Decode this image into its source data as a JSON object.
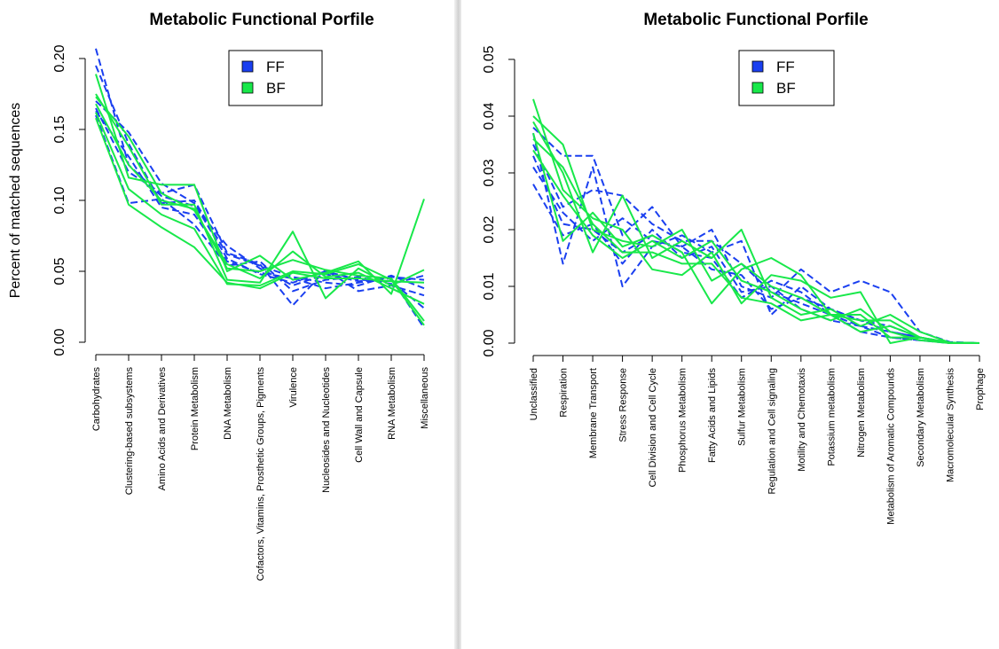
{
  "chart_data": [
    {
      "type": "line",
      "title": "Metabolic Functional Porfile",
      "ylabel": "Percent of matched sequences",
      "xlabel": "",
      "ylim": [
        0,
        0.2
      ],
      "yticks": [
        "0.00",
        "0.05",
        "0.10",
        "0.15",
        "0.20"
      ],
      "grid": false,
      "legend_position": "top-center",
      "legend": [
        {
          "label": "FF",
          "color": "#1a3ff0"
        },
        {
          "label": "BF",
          "color": "#18e84a"
        }
      ],
      "categories": [
        "Carbohydrates",
        "Clustering-based subsystems",
        "Amino Acids and Derivatives",
        "Protein Metabolism",
        "DNA Metabolism",
        "Cofactors, Vitamins, Prosthetic Groups, Pigments",
        "Virulence",
        "Nucleosides and Nucleotides",
        "Cell Wall and Capsule",
        "RNA Metabolism",
        "Miscellaneous"
      ],
      "series_groups": [
        {
          "group": "FF",
          "color": "#1a3ff0",
          "style": "dashed",
          "lines": [
            [
              0.207,
              0.125,
              0.103,
              0.096,
              0.068,
              0.052,
              0.04,
              0.048,
              0.043,
              0.045,
              0.01
            ],
            [
              0.195,
              0.14,
              0.098,
              0.1,
              0.062,
              0.054,
              0.046,
              0.042,
              0.04,
              0.047,
              0.038
            ],
            [
              0.17,
              0.148,
              0.112,
              0.098,
              0.059,
              0.048,
              0.042,
              0.05,
              0.044,
              0.043,
              0.024
            ],
            [
              0.165,
              0.12,
              0.105,
              0.111,
              0.063,
              0.055,
              0.026,
              0.051,
              0.036,
              0.04,
              0.033
            ],
            [
              0.16,
              0.098,
              0.101,
              0.083,
              0.054,
              0.057,
              0.036,
              0.044,
              0.046,
              0.041,
              0.047
            ],
            [
              0.163,
              0.131,
              0.095,
              0.09,
              0.057,
              0.049,
              0.045,
              0.038,
              0.042,
              0.046,
              0.044
            ]
          ]
        },
        {
          "group": "BF",
          "color": "#18e84a",
          "style": "solid",
          "lines": [
            [
              0.189,
              0.116,
              0.111,
              0.111,
              0.05,
              0.061,
              0.044,
              0.049,
              0.057,
              0.034,
              0.101
            ],
            [
              0.175,
              0.138,
              0.097,
              0.097,
              0.044,
              0.042,
              0.078,
              0.031,
              0.052,
              0.04,
              0.051
            ],
            [
              0.173,
              0.145,
              0.105,
              0.093,
              0.055,
              0.045,
              0.064,
              0.046,
              0.049,
              0.038,
              0.027
            ],
            [
              0.168,
              0.125,
              0.1,
              0.094,
              0.052,
              0.05,
              0.058,
              0.051,
              0.047,
              0.045,
              0.015
            ],
            [
              0.162,
              0.108,
              0.09,
              0.08,
              0.041,
              0.04,
              0.05,
              0.048,
              0.055,
              0.044,
              0.012
            ],
            [
              0.158,
              0.097,
              0.081,
              0.067,
              0.042,
              0.038,
              0.049,
              0.045,
              0.045,
              0.043,
              0.042
            ]
          ]
        }
      ]
    },
    {
      "type": "line",
      "title": "Metabolic Functional Porfile",
      "ylabel": "",
      "xlabel": "",
      "ylim": [
        0,
        0.05
      ],
      "yticks": [
        "0.00",
        "0.01",
        "0.02",
        "0.03",
        "0.04",
        "0.05"
      ],
      "grid": false,
      "legend_position": "top-center",
      "legend": [
        {
          "label": "FF",
          "color": "#1a3ff0"
        },
        {
          "label": "BF",
          "color": "#18e84a"
        }
      ],
      "categories": [
        "Unclassified",
        "Respiration",
        "Membrane Transport",
        "Stress Response",
        "Cell Division and Cell Cycle",
        "Phosphorus Metabolism",
        "Fatty Acids and Lipids",
        "Sulfur Metabolism",
        "Regulation and Cell signaling",
        "Motility and Chemotaxis",
        "Potassium metabolism",
        "Nitrogen Metabolism",
        "Metabolism of Aromatic Compounds",
        "Secondary Metabolism",
        "Macromolecular Synthesis",
        "Prophage"
      ],
      "series_groups": [
        {
          "group": "FF",
          "color": "#1a3ff0",
          "style": "dashed",
          "lines": [
            [
              0.038,
              0.033,
              0.033,
              0.019,
              0.024,
              0.017,
              0.02,
              0.01,
              0.008,
              0.013,
              0.009,
              0.011,
              0.009,
              0.002,
              0.0002,
              0.0
            ],
            [
              0.037,
              0.014,
              0.031,
              0.01,
              0.017,
              0.019,
              0.016,
              0.018,
              0.005,
              0.01,
              0.006,
              0.004,
              0.003,
              0.001,
              0.0001,
              0.0
            ],
            [
              0.035,
              0.024,
              0.027,
              0.026,
              0.021,
              0.018,
              0.018,
              0.014,
              0.009,
              0.007,
              0.005,
              0.002,
              0.001,
              0.0005,
              0.0001,
              0.0
            ],
            [
              0.033,
              0.021,
              0.02,
              0.016,
              0.019,
              0.016,
              0.015,
              0.008,
              0.011,
              0.009,
              0.005,
              0.003,
              0.002,
              0.001,
              0.0,
              0.0
            ],
            [
              0.031,
              0.023,
              0.018,
              0.022,
              0.018,
              0.017,
              0.013,
              0.012,
              0.006,
              0.008,
              0.006,
              0.004,
              0.002,
              0.001,
              0.0001,
              0.0
            ],
            [
              0.028,
              0.019,
              0.021,
              0.014,
              0.02,
              0.015,
              0.017,
              0.009,
              0.01,
              0.006,
              0.004,
              0.003,
              0.001,
              0.0005,
              0.0,
              0.0
            ]
          ]
        },
        {
          "group": "BF",
          "color": "#18e84a",
          "style": "solid",
          "lines": [
            [
              0.043,
              0.027,
              0.022,
              0.02,
              0.013,
              0.012,
              0.016,
              0.007,
              0.012,
              0.011,
              0.008,
              0.009,
              0.0,
              0.001,
              0.0001,
              0.0
            ],
            [
              0.04,
              0.035,
              0.02,
              0.018,
              0.017,
              0.02,
              0.011,
              0.014,
              0.01,
              0.008,
              0.005,
              0.004,
              0.004,
              0.001,
              0.0001,
              0.0
            ],
            [
              0.039,
              0.03,
              0.016,
              0.026,
              0.015,
              0.018,
              0.015,
              0.02,
              0.008,
              0.005,
              0.006,
              0.003,
              0.005,
              0.002,
              0.0001,
              0.0
            ],
            [
              0.037,
              0.018,
              0.023,
              0.017,
              0.019,
              0.016,
              0.007,
              0.013,
              0.015,
              0.012,
              0.005,
              0.002,
              0.003,
              0.001,
              0.0,
              0.0
            ],
            [
              0.036,
              0.031,
              0.021,
              0.016,
              0.016,
              0.014,
              0.014,
              0.008,
              0.007,
              0.004,
              0.005,
              0.005,
              0.001,
              0.001,
              0.0,
              0.0
            ],
            [
              0.034,
              0.026,
              0.019,
              0.015,
              0.018,
              0.015,
              0.018,
              0.011,
              0.009,
              0.006,
              0.004,
              0.006,
              0.002,
              0.0005,
              0.0,
              0.0
            ]
          ]
        }
      ]
    }
  ]
}
